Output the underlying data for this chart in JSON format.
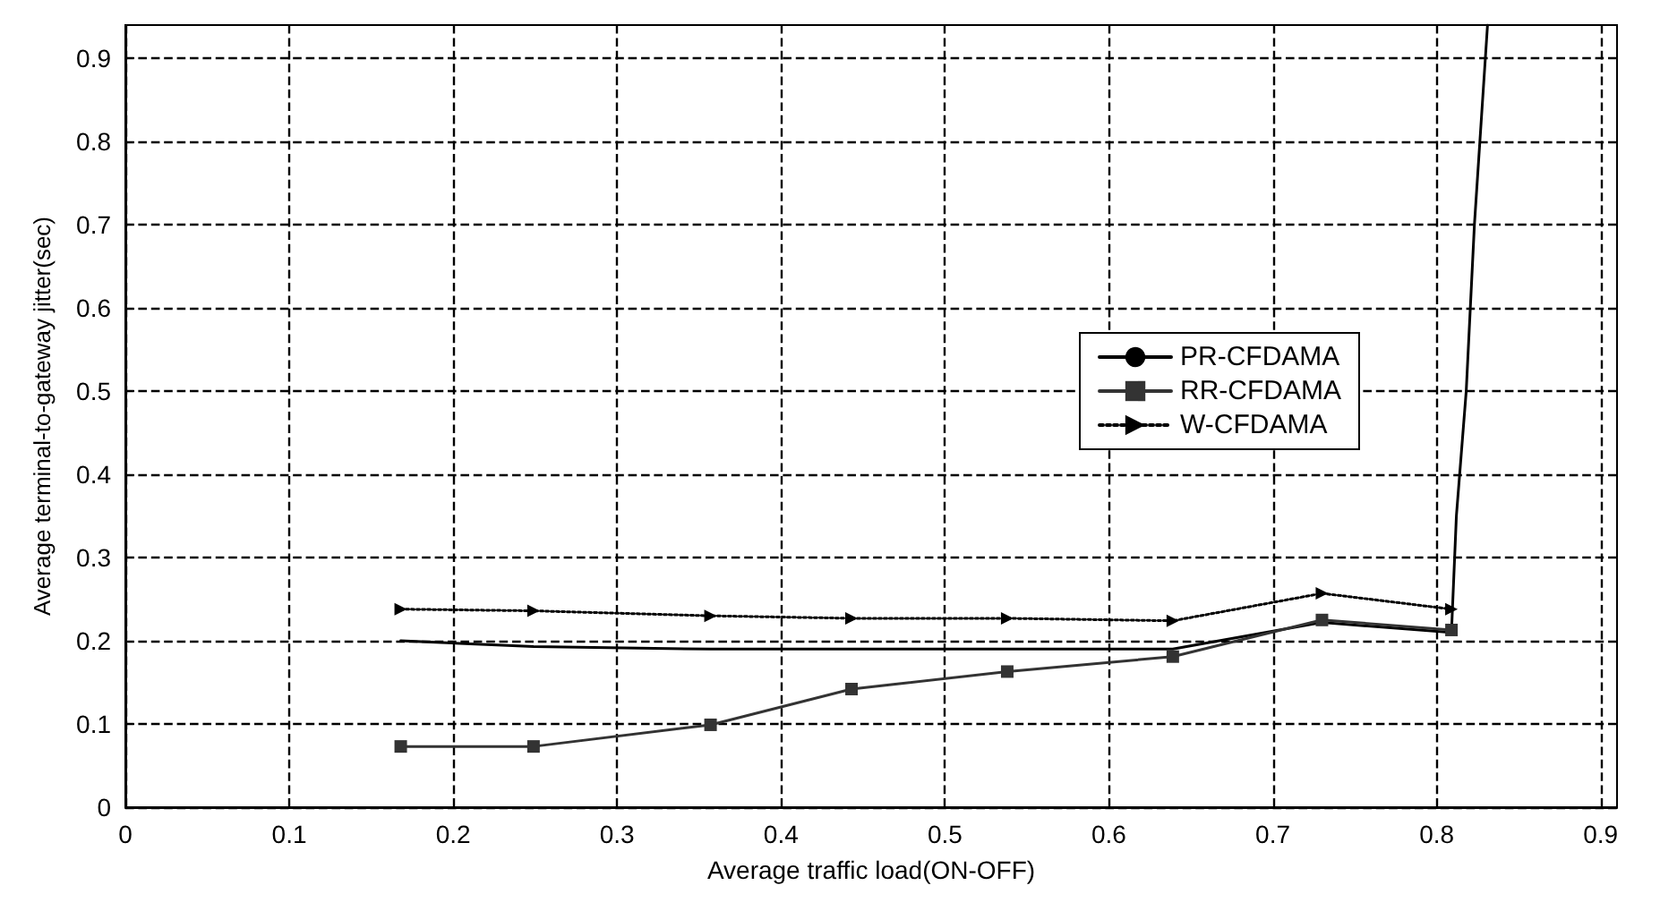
{
  "chart_data": {
    "type": "line",
    "xlabel": "Average traffic load(ON-OFF)",
    "ylabel": "Average terminal-to-gateway jitter(sec)",
    "xlim": [
      0,
      0.91
    ],
    "xticks": [
      0,
      0.1,
      0.2,
      0.3,
      0.4,
      0.5,
      0.6,
      0.7,
      0.8,
      0.9
    ],
    "ylim": [
      0,
      0.94
    ],
    "yticks": [
      0,
      0.1,
      0.2,
      0.3,
      0.4,
      0.5,
      0.6,
      0.7,
      0.8,
      0.9
    ],
    "grid": true,
    "legend": "right",
    "series": [
      {
        "name": "PR-CFDAMA",
        "color": "#000000",
        "marker": "none",
        "line_style": "solid",
        "x": [
          0.168,
          0.249,
          0.357,
          0.443,
          0.538,
          0.639,
          0.73,
          0.809,
          0.812,
          0.818,
          0.823,
          0.831
        ],
        "values": [
          0.2,
          0.193,
          0.19,
          0.19,
          0.19,
          0.19,
          0.222,
          0.21,
          0.35,
          0.5,
          0.7,
          0.94
        ]
      },
      {
        "name": "RR-CFDAMA",
        "color": "#333333",
        "marker": "square",
        "line_style": "solid",
        "x": [
          0.168,
          0.249,
          0.357,
          0.443,
          0.538,
          0.639,
          0.73,
          0.809
        ],
        "values": [
          0.073,
          0.073,
          0.099,
          0.142,
          0.163,
          0.181,
          0.225,
          0.213
        ]
      },
      {
        "name": "W-CFDAMA",
        "color": "#000000",
        "marker": "triangle",
        "line_style": "dotted",
        "x": [
          0.168,
          0.249,
          0.357,
          0.443,
          0.538,
          0.639,
          0.73,
          0.809
        ],
        "values": [
          0.238,
          0.236,
          0.23,
          0.227,
          0.227,
          0.224,
          0.257,
          0.238
        ]
      }
    ]
  }
}
